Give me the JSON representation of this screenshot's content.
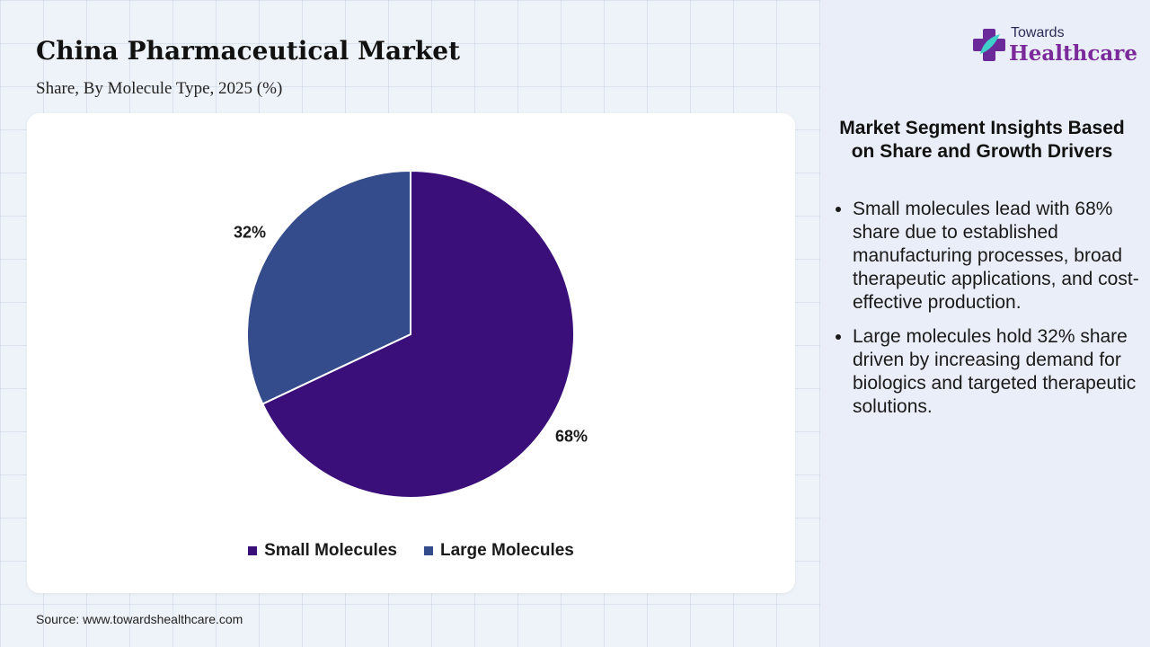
{
  "header": {
    "title": "China Pharmaceutical Market",
    "subtitle": "Share, By Molecule Type, 2025 (%)"
  },
  "chart_data": {
    "type": "pie",
    "title": "China Pharmaceutical Market",
    "subtitle": "Share, By Molecule Type, 2025 (%)",
    "categories": [
      "Small Molecules",
      "Large Molecules"
    ],
    "values": [
      68,
      32
    ],
    "labels": [
      "68%",
      "32%"
    ],
    "colors": [
      "#3b0f79",
      "#344c8c"
    ],
    "legend": "bottom",
    "unit": "%"
  },
  "source": "Source: www.towardshealthcare.com",
  "logo": {
    "line1": "Towards",
    "line2": "Healthcare"
  },
  "insights": {
    "heading": "Market Segment Insights Based on Share and Growth Drivers",
    "bullets": [
      "Small molecules lead with 68% share due to established manufacturing processes, broad therapeutic applications, and cost-effective production.",
      "Large molecules hold 32% share driven by increasing demand for biologics and targeted therapeutic solutions."
    ]
  }
}
